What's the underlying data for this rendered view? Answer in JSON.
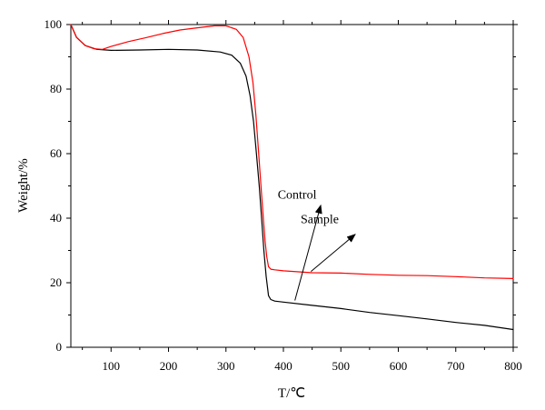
{
  "chart_data": {
    "type": "line",
    "xlabel": "T/℃",
    "ylabel": "Weight/%",
    "xlim": [
      30,
      800
    ],
    "ylim": [
      0,
      100
    ],
    "x_ticks": [
      100,
      200,
      300,
      400,
      500,
      600,
      700,
      800
    ],
    "y_ticks": [
      0,
      20,
      40,
      60,
      80,
      100
    ],
    "grid": false,
    "legend": "none",
    "series": [
      {
        "name": "Control",
        "color": "#000000",
        "points": [
          [
            30,
            100
          ],
          [
            40,
            96
          ],
          [
            55,
            93.5
          ],
          [
            75,
            92.3
          ],
          [
            100,
            92
          ],
          [
            150,
            92.1
          ],
          [
            200,
            92.3
          ],
          [
            250,
            92.1
          ],
          [
            290,
            91.5
          ],
          [
            310,
            90.5
          ],
          [
            325,
            88
          ],
          [
            335,
            84
          ],
          [
            342,
            78
          ],
          [
            348,
            70
          ],
          [
            353,
            60
          ],
          [
            358,
            50
          ],
          [
            362,
            40
          ],
          [
            366,
            30
          ],
          [
            370,
            22
          ],
          [
            374,
            16
          ],
          [
            378,
            14.8
          ],
          [
            385,
            14.3
          ],
          [
            400,
            14
          ],
          [
            450,
            13
          ],
          [
            500,
            12
          ],
          [
            550,
            10.8
          ],
          [
            600,
            9.8
          ],
          [
            650,
            8.8
          ],
          [
            700,
            7.7
          ],
          [
            750,
            6.8
          ],
          [
            800,
            5.5
          ]
        ]
      },
      {
        "name": "Sample",
        "color": "#ff0000",
        "points": [
          [
            30,
            100
          ],
          [
            40,
            96
          ],
          [
            55,
            93.5
          ],
          [
            70,
            92.5
          ],
          [
            85,
            92.3
          ],
          [
            100,
            93.2
          ],
          [
            130,
            94.7
          ],
          [
            160,
            95.9
          ],
          [
            190,
            97.2
          ],
          [
            220,
            98.3
          ],
          [
            250,
            99
          ],
          [
            280,
            99.6
          ],
          [
            300,
            99.6
          ],
          [
            318,
            98.5
          ],
          [
            330,
            96
          ],
          [
            340,
            90
          ],
          [
            347,
            82
          ],
          [
            352,
            72
          ],
          [
            357,
            60
          ],
          [
            361,
            50
          ],
          [
            365,
            40
          ],
          [
            368,
            33
          ],
          [
            371,
            28
          ],
          [
            374,
            25
          ],
          [
            378,
            24.2
          ],
          [
            385,
            24
          ],
          [
            400,
            23.7
          ],
          [
            450,
            23.1
          ],
          [
            500,
            23
          ],
          [
            550,
            22.6
          ],
          [
            600,
            22.3
          ],
          [
            650,
            22.2
          ],
          [
            700,
            21.9
          ],
          [
            750,
            21.5
          ],
          [
            800,
            21.3
          ]
        ]
      }
    ],
    "annotations": [
      {
        "label": "Control",
        "arrow_from": [
          420,
          14.5
        ],
        "arrow_to": [
          465,
          44
        ],
        "text_at": [
          390,
          46
        ]
      },
      {
        "label": "Sample",
        "arrow_from": [
          448,
          23.5
        ],
        "arrow_to": [
          525,
          35
        ],
        "text_at": [
          430,
          38.5
        ]
      }
    ]
  }
}
